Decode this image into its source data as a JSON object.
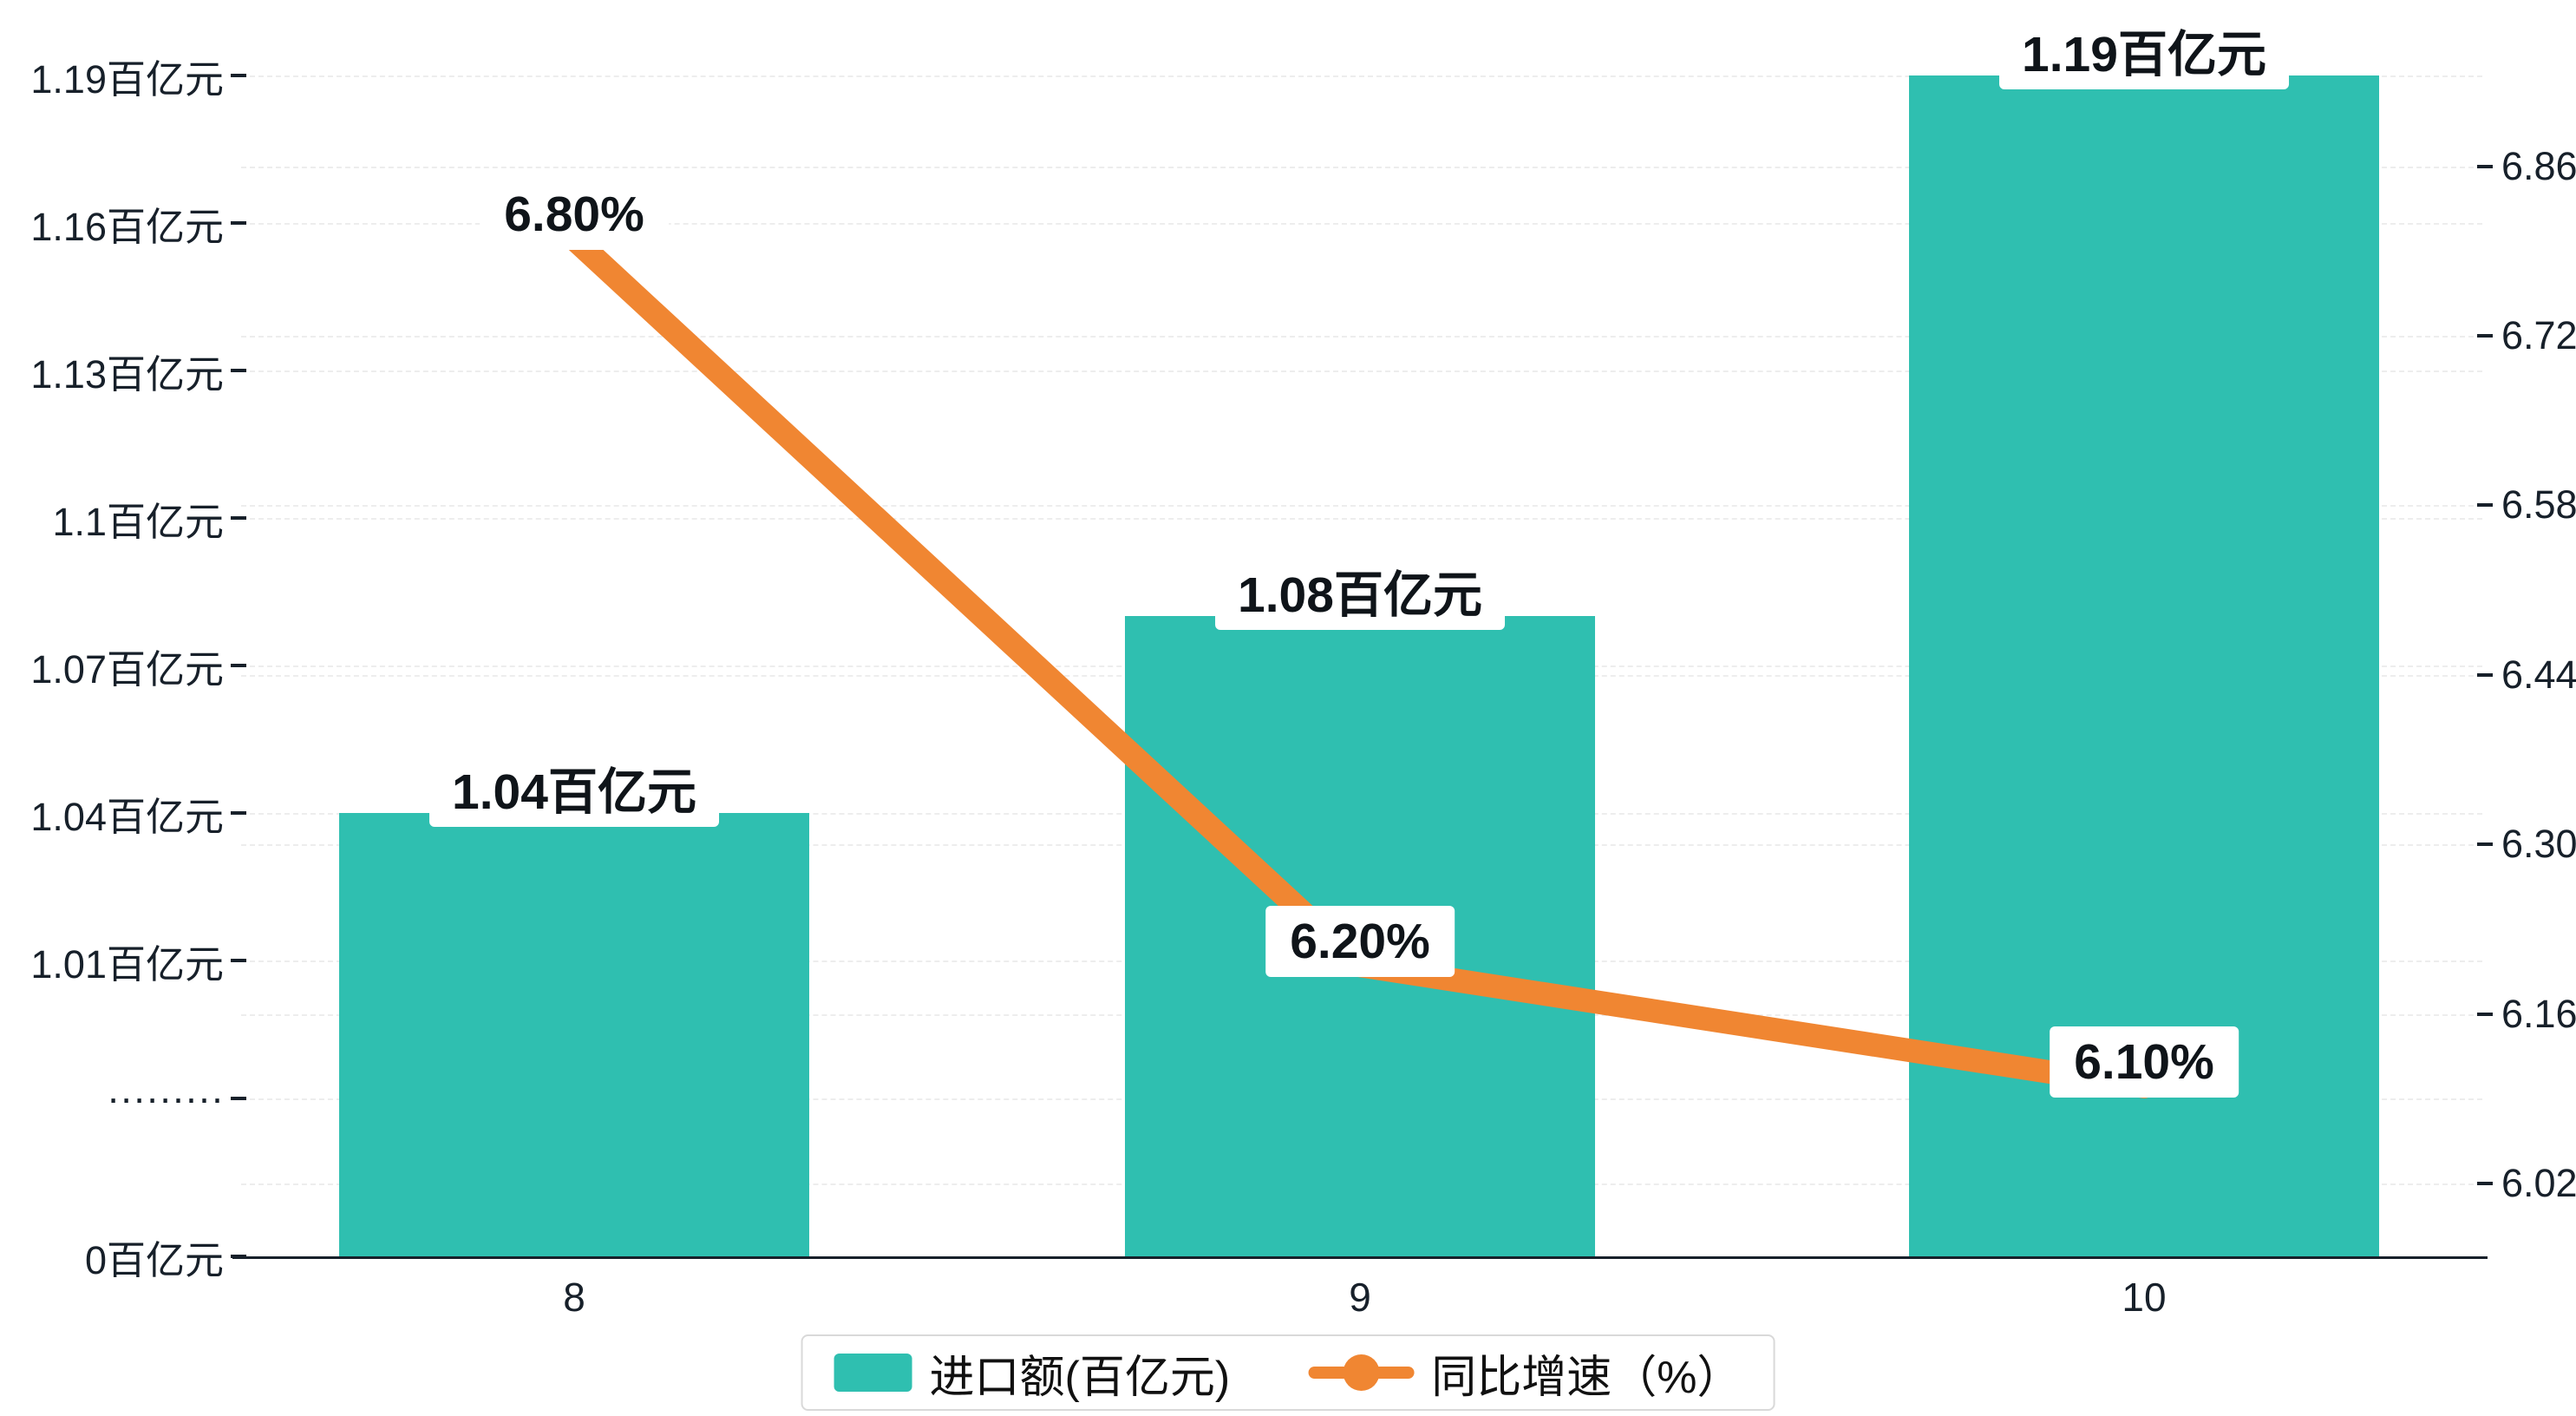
{
  "chart_data": {
    "type": "bar+line",
    "categories": [
      "8",
      "9",
      "10"
    ],
    "series": [
      {
        "name": "进口额(百亿元)",
        "type": "bar",
        "y_axis": "left",
        "color": "#2FBFB0",
        "unit": "百亿元",
        "values": [
          1.04,
          1.08,
          1.19
        ],
        "data_labels": [
          "1.04百亿元",
          "1.08百亿元",
          "1.19百亿元"
        ]
      },
      {
        "name": "同比增速（%）",
        "type": "line",
        "y_axis": "right",
        "color": "#F08632",
        "unit": "%",
        "values": [
          6.8,
          6.2,
          6.1
        ],
        "data_labels": [
          "6.80%",
          "6.20%",
          "6.10%"
        ]
      }
    ],
    "left_axis": {
      "tick_labels": [
        "0百亿元",
        "·········",
        "1.01百亿元",
        "1.04百亿元",
        "1.07百亿元",
        "1.1百亿元",
        "1.13百亿元",
        "1.16百亿元",
        "1.19百亿元"
      ],
      "broken_axis": true,
      "upper_segment_range": [
        1.01,
        1.19
      ]
    },
    "right_axis": {
      "tick_labels": [
        "6.02",
        "6.16",
        "6.30",
        "6.44",
        "6.58",
        "6.72",
        "6.86"
      ],
      "min": 6.02,
      "max": 6.86
    },
    "x_axis": {
      "tick_labels": [
        "8",
        "9",
        "10"
      ]
    },
    "legend": {
      "position": "bottom-center",
      "items": [
        {
          "label": "进口额(百亿元)",
          "marker": "bar-swatch",
          "color": "#2FBFB0"
        },
        {
          "label": "同比增速（%）",
          "marker": "line-with-dot",
          "color": "#F08632"
        }
      ]
    },
    "grid": {
      "style": "dashed-horizontal",
      "color": "#ededed"
    }
  }
}
